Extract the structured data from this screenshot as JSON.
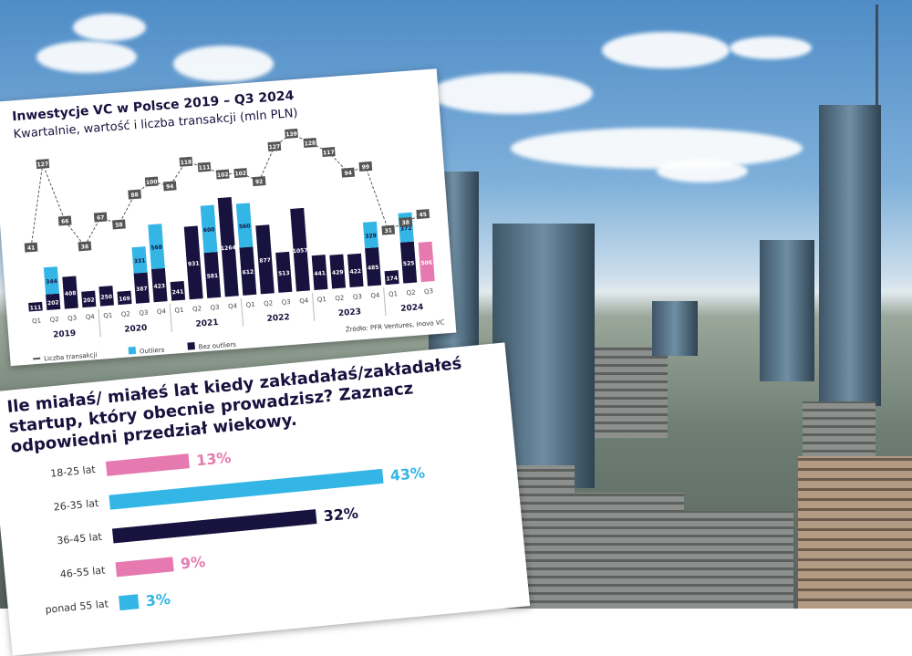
{
  "colors": {
    "navy": "#17123e",
    "blue": "#33b5e5",
    "pink": "#e67ab0",
    "line": "#555555"
  },
  "chart_data": [
    {
      "type": "bar",
      "title": "Inwestycje VC w Polsce 2019 – Q3 2024",
      "subtitle": "Kwartalnie, wartość i liczba transakcji (mln PLN)",
      "source": "Źródło: PFR Ventures, Inovo VC",
      "quarters": [
        "Q1",
        "Q2",
        "Q3",
        "Q4",
        "Q1",
        "Q2",
        "Q3",
        "Q4",
        "Q1",
        "Q2",
        "Q3",
        "Q4",
        "Q1",
        "Q2",
        "Q3",
        "Q4",
        "Q1",
        "Q2",
        "Q3",
        "Q4",
        "Q1",
        "Q2",
        "Q3"
      ],
      "years": [
        "2019",
        "2020",
        "2021",
        "2022",
        "2023",
        "2024"
      ],
      "legend": [
        "Liczba transakcji",
        "Outliers",
        "Bez outliers"
      ],
      "series": [
        {
          "name": "Bez outliers",
          "values": [
            111,
            202,
            408,
            202,
            250,
            169,
            387,
            423,
            241,
            931,
            581,
            1264,
            612,
            877,
            513,
            1057,
            441,
            429,
            422,
            485,
            174,
            525,
            506
          ]
        },
        {
          "name": "Outliers",
          "values": [
            0,
            344,
            0,
            0,
            0,
            0,
            331,
            568,
            0,
            0,
            600,
            0,
            560,
            0,
            0,
            0,
            0,
            0,
            0,
            329,
            0,
            372,
            0
          ]
        },
        {
          "name": "Liczba transakcji",
          "values": [
            41,
            127,
            66,
            38,
            67,
            58,
            88,
            100,
            94,
            118,
            111,
            102,
            102,
            92,
            127,
            139,
            128,
            117,
            94,
            99,
            31,
            38,
            45
          ]
        }
      ]
    },
    {
      "type": "bar",
      "orientation": "horizontal",
      "title": "Ile miałaś/ miałeś lat kiedy zakładałaś/zakładałeś startup, który obecnie prowadzisz? Zaznacz odpowiedni przedział wiekowy.",
      "categories": [
        "18-25 lat",
        "26-35 lat",
        "36-45 lat",
        "46-55 lat",
        "ponad 55 lat"
      ],
      "values": [
        13,
        43,
        32,
        9,
        3
      ],
      "labels": [
        "13%",
        "43%",
        "32%",
        "9%",
        "3%"
      ],
      "bar_colors": [
        "#e67ab0",
        "#33b5e5",
        "#17123e",
        "#e67ab0",
        "#33b5e5"
      ]
    }
  ]
}
